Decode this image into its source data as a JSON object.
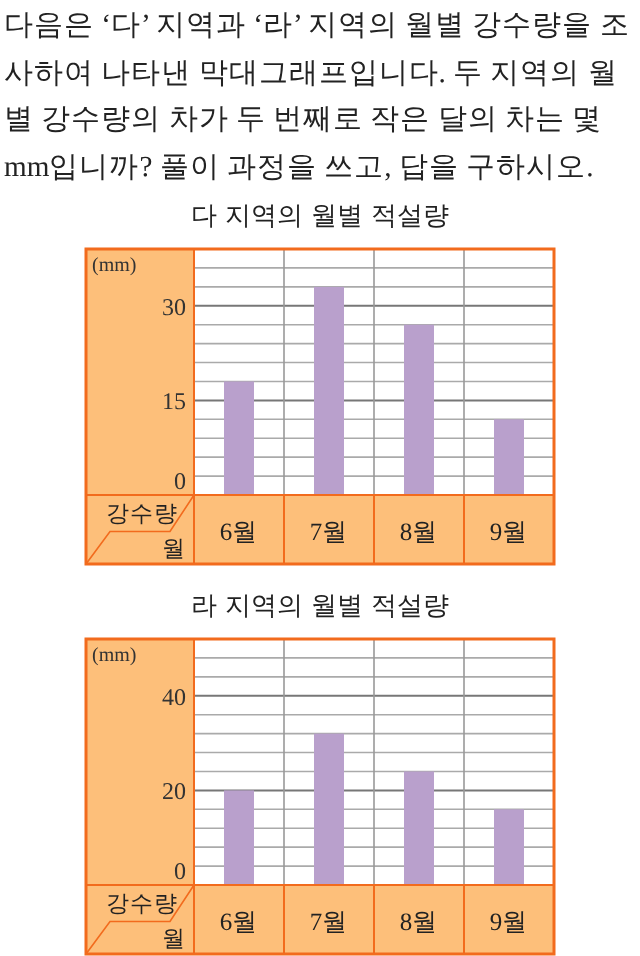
{
  "chart_data": [
    {
      "type": "other",
      "annotations": [
        "다음은 ‘다’ 지역과 ‘라’ 지역의 월별 강수량을 조사하여 나타낸 막대그래프입니다. 두 지역의 월별 강수량의 차가 두 번째로 작은 달의 차는 몇 mm입니까? 풀이 과정을 쓰고, 답을 구하시오."
      ]
    },
    {
      "type": "bar",
      "title": "다 지역의 월별 적설량",
      "ylabel": "강수량",
      "xlabel": "월",
      "annotations": [
        "(mm)"
      ],
      "categories": [
        "6월",
        "7월",
        "8월",
        "9월"
      ],
      "values": [
        18,
        33,
        27,
        12
      ],
      "color": "#b9a0cc",
      "ylim": [
        0,
        39
      ],
      "yticks": [
        0,
        {
          "value": 3,
          "label": null
        },
        {
          "value": 6,
          "label": null
        },
        {
          "value": 9,
          "label": null
        },
        {
          "value": 12,
          "label": null
        },
        15,
        {
          "value": 18,
          "label": null
        },
        {
          "value": 21,
          "label": null
        },
        {
          "value": 24,
          "label": null
        },
        {
          "value": 27,
          "label": null
        },
        30,
        {
          "value": 33,
          "label": null
        },
        {
          "value": 36,
          "label": null
        },
        {
          "value": 39,
          "label": null
        }
      ],
      "grid": true
    },
    {
      "type": "bar",
      "title": "라 지역의 월별 적설량",
      "ylabel": "강수량",
      "xlabel": "월",
      "annotations": [
        "(mm)"
      ],
      "categories": [
        "6월",
        "7월",
        "8월",
        "9월"
      ],
      "values": [
        20,
        32,
        24,
        16
      ],
      "color": "#b9a0cc",
      "ylim": [
        0,
        52
      ],
      "yticks": [
        0,
        {
          "value": 4,
          "label": null
        },
        {
          "value": 8,
          "label": null
        },
        {
          "value": 12,
          "label": null
        },
        {
          "value": 16,
          "label": null
        },
        20,
        {
          "value": 24,
          "label": null
        },
        {
          "value": 28,
          "label": null
        },
        {
          "value": 32,
          "label": null
        },
        {
          "value": 36,
          "label": null
        },
        40,
        {
          "value": 44,
          "label": null
        },
        {
          "value": 48,
          "label": null
        },
        {
          "value": 52,
          "label": null
        }
      ],
      "grid": true
    }
  ]
}
